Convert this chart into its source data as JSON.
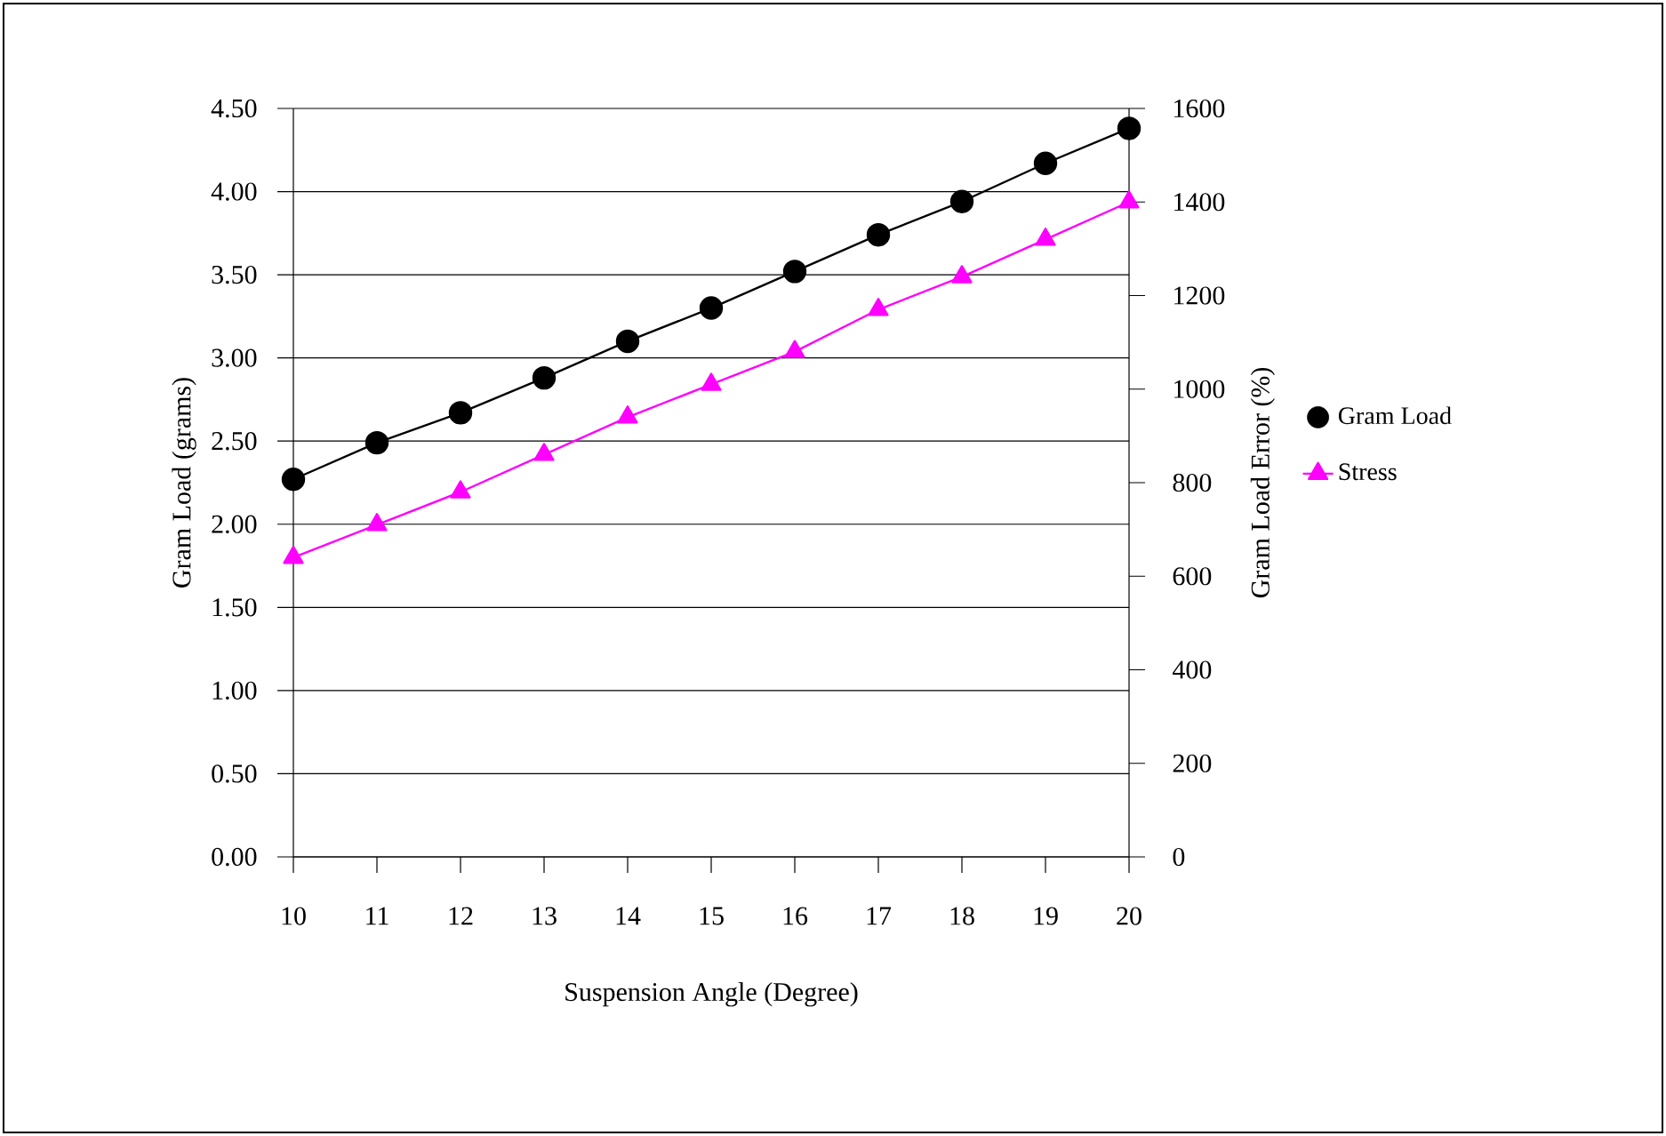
{
  "chart_data": {
    "type": "line",
    "xlabel": "Suspension Angle (Degree)",
    "ylabel": "Gram Load (grams)",
    "y2label": "Gram Load Error (%)",
    "x": [
      10,
      11,
      12,
      13,
      14,
      15,
      16,
      17,
      18,
      19,
      20
    ],
    "series": [
      {
        "name": "Gram Load",
        "color": "#000000",
        "marker": "circle",
        "values": [
          2.27,
          2.49,
          2.67,
          2.88,
          3.1,
          3.3,
          3.52,
          3.74,
          3.94,
          4.17,
          4.38
        ]
      },
      {
        "name": "Stress",
        "color": "#ff00ff",
        "marker": "triangle",
        "axis": "y2",
        "values": [
          640,
          710,
          780,
          860,
          940,
          1010,
          1080,
          1170,
          1240,
          1320,
          1400
        ]
      }
    ],
    "xlim": [
      10,
      20
    ],
    "xticks": [
      10,
      11,
      12,
      13,
      14,
      15,
      16,
      17,
      18,
      19,
      20
    ],
    "ylim": [
      0,
      4.5
    ],
    "yticks": [
      {
        "value": 0,
        "label": "0.00"
      },
      {
        "value": 0.5,
        "label": "0.50"
      },
      {
        "value": 1,
        "label": "1.00"
      },
      {
        "value": 1.5,
        "label": "1.50"
      },
      {
        "value": 2,
        "label": "2.00"
      },
      {
        "value": 2.5,
        "label": "2.50"
      },
      {
        "value": 3,
        "label": "3.00"
      },
      {
        "value": 3.5,
        "label": "3.50"
      },
      {
        "value": 4,
        "label": "4.00"
      },
      {
        "value": 4.5,
        "label": "4.50"
      }
    ],
    "y2lim": [
      0,
      1600
    ],
    "y2ticks": [
      0,
      200,
      400,
      600,
      800,
      1000,
      1200,
      1400,
      1600
    ],
    "grid": "y",
    "legend": "right",
    "line_style": "solid"
  }
}
